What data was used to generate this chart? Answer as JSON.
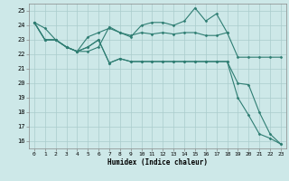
{
  "xlabel": "Humidex (Indice chaleur)",
  "bg_color": "#cde8e8",
  "grid_color": "#aacccc",
  "line_color": "#2e7d72",
  "xlim": [
    -0.5,
    23.5
  ],
  "ylim": [
    15.5,
    25.5
  ],
  "yticks": [
    16,
    17,
    18,
    19,
    20,
    21,
    22,
    23,
    24,
    25
  ],
  "xticks": [
    0,
    1,
    2,
    3,
    4,
    5,
    6,
    7,
    8,
    9,
    10,
    11,
    12,
    13,
    14,
    15,
    16,
    17,
    18,
    19,
    20,
    21,
    22,
    23
  ],
  "series": [
    [
      24.2,
      23.8,
      23.0,
      22.5,
      22.2,
      22.2,
      22.5,
      23.9,
      23.5,
      23.3,
      23.5,
      23.4,
      23.5,
      23.4,
      23.5,
      23.5,
      23.3,
      23.3,
      23.5,
      21.8,
      21.8,
      21.8,
      21.8,
      21.8
    ],
    [
      24.2,
      23.0,
      23.0,
      22.5,
      22.2,
      23.2,
      23.5,
      23.8,
      23.5,
      23.2,
      24.0,
      24.2,
      24.2,
      24.0,
      24.3,
      25.2,
      24.3,
      24.8,
      23.5,
      null,
      null,
      null,
      null,
      null
    ],
    [
      24.2,
      23.0,
      23.0,
      22.5,
      22.2,
      22.5,
      23.0,
      21.4,
      21.7,
      21.5,
      21.5,
      21.5,
      21.5,
      21.5,
      21.5,
      21.5,
      21.5,
      21.5,
      21.5,
      20.0,
      19.9,
      18.0,
      16.5,
      15.8
    ],
    [
      24.2,
      23.0,
      23.0,
      22.5,
      22.2,
      22.5,
      23.0,
      21.4,
      21.7,
      21.5,
      21.5,
      21.5,
      21.5,
      21.5,
      21.5,
      21.5,
      21.5,
      21.5,
      21.5,
      19.0,
      17.8,
      16.5,
      16.2,
      15.8
    ]
  ]
}
